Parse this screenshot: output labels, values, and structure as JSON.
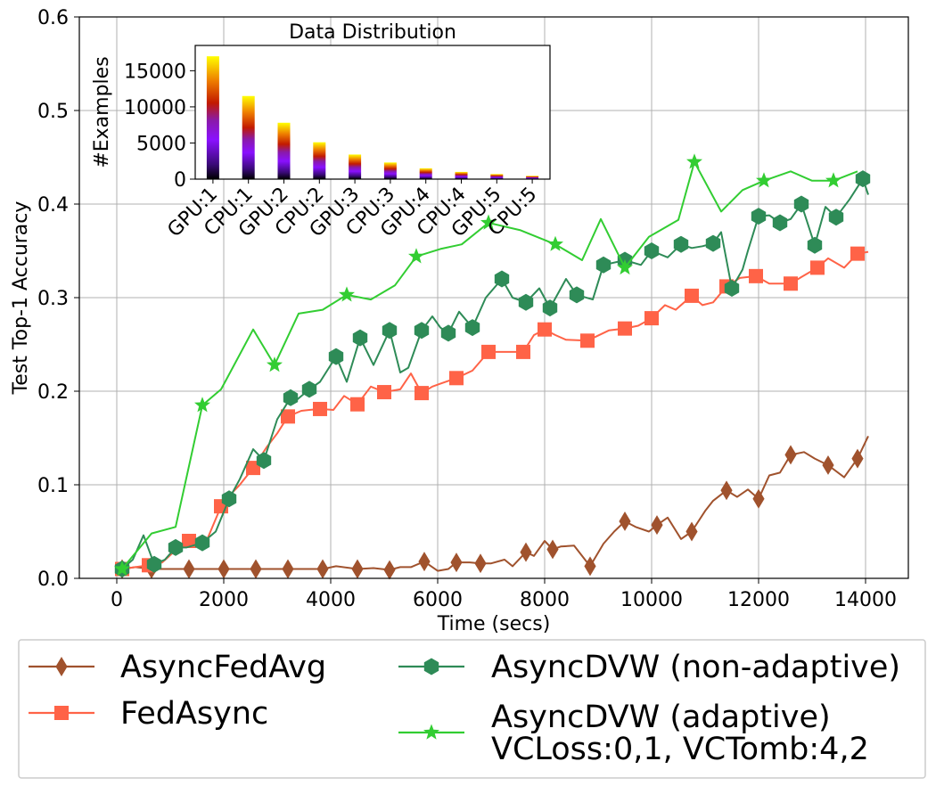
{
  "colors": {
    "asyncfedavg": "#a0522d",
    "fedasync": "#ff6347",
    "asyncdvw_nonadaptive": "#2e8b57",
    "asyncdvw_adaptive": "#32cd32",
    "grid": "#b0b0b0"
  },
  "chart_data": [
    {
      "type": "line",
      "title": "",
      "xlabel": "Time (secs)",
      "ylabel": "Test Top-1 Accuracy",
      "xlim": [
        -700,
        14800
      ],
      "ylim": [
        0.0,
        0.6
      ],
      "xticks": [
        0,
        2000,
        4000,
        6000,
        8000,
        10000,
        12000,
        14000
      ],
      "xtick_labels": [
        "0",
        "2000",
        "4000",
        "6000",
        "8000",
        "10000",
        "12000",
        "14000"
      ],
      "yticks": [
        0.0,
        0.1,
        0.2,
        0.3,
        0.4,
        0.5,
        0.6
      ],
      "ytick_labels": [
        "0.0",
        "0.1",
        "0.2",
        "0.3",
        "0.4",
        "0.5",
        "0.6"
      ],
      "grid": true,
      "series": [
        {
          "key": "asyncfedavg",
          "name": "AsyncFedAvg",
          "marker": "diamond",
          "x": [
            100,
            350,
            650,
            1000,
            1350,
            1700,
            2000,
            2350,
            2600,
            2900,
            3200,
            3600,
            3850,
            4100,
            4500,
            4800,
            5100,
            5300,
            5500,
            5750,
            6000,
            6200,
            6350,
            6600,
            6800,
            7000,
            7250,
            7400,
            7650,
            7800,
            8000,
            8150,
            8300,
            8550,
            8850,
            9100,
            9300,
            9500,
            9700,
            9950,
            10100,
            10300,
            10550,
            10750,
            11000,
            11150,
            11400,
            11600,
            11800,
            12000,
            12200,
            12400,
            12600,
            12850,
            13050,
            13300,
            13600,
            13850,
            14050
          ],
          "y": [
            0.01,
            0.012,
            0.01,
            0.01,
            0.01,
            0.01,
            0.01,
            0.01,
            0.01,
            0.01,
            0.01,
            0.01,
            0.01,
            0.013,
            0.01,
            0.011,
            0.009,
            0.012,
            0.012,
            0.018,
            0.008,
            0.01,
            0.017,
            0.017,
            0.016,
            0.016,
            0.02,
            0.013,
            0.028,
            0.024,
            0.04,
            0.031,
            0.034,
            0.035,
            0.013,
            0.037,
            0.05,
            0.061,
            0.055,
            0.05,
            0.057,
            0.065,
            0.042,
            0.05,
            0.072,
            0.083,
            0.094,
            0.087,
            0.095,
            0.085,
            0.11,
            0.113,
            0.132,
            0.135,
            0.128,
            0.121,
            0.108,
            0.128,
            0.152
          ],
          "marker_indices": [
            0,
            2,
            4,
            6,
            8,
            10,
            12,
            14,
            16,
            19,
            22,
            24,
            28,
            31,
            34,
            37,
            40,
            43,
            46,
            49,
            52,
            55,
            57
          ]
        },
        {
          "key": "fedasync",
          "name": "FedAsync",
          "marker": "square",
          "x": [
            100,
            350,
            600,
            850,
            1100,
            1350,
            1550,
            1700,
            1950,
            2100,
            2300,
            2550,
            2800,
            3000,
            3200,
            3450,
            3600,
            3800,
            4050,
            4250,
            4500,
            4750,
            5000,
            5300,
            5500,
            5700,
            5900,
            6050,
            6350,
            6650,
            6950,
            7200,
            7600,
            7800,
            8000,
            8200,
            8400,
            8800,
            9200,
            9500,
            9750,
            10000,
            10250,
            10450,
            10750,
            10950,
            11150,
            11400,
            11650,
            11950,
            12200,
            12600,
            12800,
            13100,
            13300,
            13600,
            13850,
            14050
          ],
          "y": [
            0.01,
            0.012,
            0.014,
            0.017,
            0.03,
            0.04,
            0.04,
            0.043,
            0.077,
            0.088,
            0.1,
            0.118,
            0.14,
            0.155,
            0.173,
            0.179,
            0.18,
            0.181,
            0.18,
            0.195,
            0.186,
            0.205,
            0.199,
            0.202,
            0.219,
            0.198,
            0.205,
            0.208,
            0.214,
            0.222,
            0.242,
            0.242,
            0.242,
            0.26,
            0.266,
            0.26,
            0.255,
            0.254,
            0.265,
            0.267,
            0.27,
            0.278,
            0.292,
            0.287,
            0.302,
            0.292,
            0.295,
            0.312,
            0.321,
            0.323,
            0.315,
            0.315,
            0.322,
            0.332,
            0.342,
            0.332,
            0.347,
            0.349
          ],
          "marker_indices": [
            0,
            2,
            5,
            8,
            11,
            14,
            17,
            20,
            22,
            25,
            28,
            30,
            32,
            34,
            37,
            39,
            41,
            44,
            47,
            49,
            51,
            53,
            56
          ]
        },
        {
          "key": "asyncdvw_nonadaptive",
          "name": "AsyncDVW (non-adaptive)",
          "marker": "hexagon",
          "x": [
            100,
            300,
            500,
            700,
            900,
            1100,
            1300,
            1600,
            1850,
            2100,
            2300,
            2550,
            2750,
            3000,
            3250,
            3350,
            3600,
            3800,
            4100,
            4300,
            4550,
            4800,
            5100,
            5300,
            5450,
            5700,
            5900,
            6050,
            6200,
            6400,
            6650,
            6900,
            7200,
            7400,
            7650,
            7900,
            8100,
            8400,
            8600,
            8900,
            9100,
            9500,
            9800,
            10000,
            10300,
            10550,
            10750,
            10950,
            11150,
            11300,
            11500,
            11700,
            11800,
            12000,
            12200,
            12400,
            12600,
            12800,
            13050,
            13250,
            13450,
            13700,
            13950,
            14050
          ],
          "y": [
            0.01,
            0.02,
            0.046,
            0.015,
            0.02,
            0.033,
            0.033,
            0.038,
            0.05,
            0.085,
            0.106,
            0.138,
            0.126,
            0.17,
            0.193,
            0.19,
            0.202,
            0.21,
            0.237,
            0.21,
            0.257,
            0.228,
            0.265,
            0.22,
            0.225,
            0.265,
            0.28,
            0.268,
            0.262,
            0.285,
            0.268,
            0.3,
            0.32,
            0.3,
            0.295,
            0.31,
            0.289,
            0.32,
            0.303,
            0.298,
            0.335,
            0.34,
            0.335,
            0.35,
            0.343,
            0.357,
            0.353,
            0.355,
            0.358,
            0.37,
            0.31,
            0.33,
            0.35,
            0.387,
            0.388,
            0.38,
            0.384,
            0.4,
            0.356,
            0.397,
            0.386,
            0.405,
            0.427,
            0.41
          ],
          "marker_indices": [
            0,
            3,
            5,
            7,
            9,
            12,
            14,
            16,
            18,
            20,
            22,
            25,
            28,
            30,
            32,
            34,
            36,
            38,
            40,
            41,
            43,
            45,
            48,
            50,
            53,
            55,
            57,
            58,
            60,
            62
          ]
        },
        {
          "key": "asyncdvw_adaptive",
          "name": "AsyncDVW (adaptive) VCLoss:0,1, VCTomb:4,2",
          "marker": "star",
          "x": [
            100,
            650,
            1100,
            1600,
            1950,
            2550,
            2950,
            3400,
            3850,
            4300,
            4750,
            5200,
            5600,
            6050,
            6450,
            6950,
            7550,
            8200,
            8700,
            9050,
            9500,
            9950,
            10500,
            10800,
            11300,
            11700,
            12100,
            12600,
            13000,
            13400,
            13850
          ],
          "y": [
            0.01,
            0.048,
            0.055,
            0.185,
            0.202,
            0.266,
            0.228,
            0.283,
            0.287,
            0.303,
            0.298,
            0.313,
            0.344,
            0.352,
            0.357,
            0.38,
            0.372,
            0.357,
            0.34,
            0.384,
            0.332,
            0.365,
            0.383,
            0.445,
            0.392,
            0.415,
            0.425,
            0.435,
            0.425,
            0.425,
            0.435
          ],
          "marker_indices": [
            0,
            3,
            6,
            9,
            12,
            15,
            17,
            20,
            23,
            26,
            29
          ]
        }
      ],
      "legend": {
        "placement": "below",
        "entries": [
          {
            "key": "asyncfedavg",
            "label_lines": [
              "AsyncFedAvg"
            ]
          },
          {
            "key": "fedasync",
            "label_lines": [
              "FedAsync"
            ]
          },
          {
            "key": "asyncdvw_nonadaptive",
            "label_lines": [
              "AsyncDVW (non-adaptive)"
            ]
          },
          {
            "key": "asyncdvw_adaptive",
            "label_lines": [
              "AsyncDVW (adaptive)",
              "VCLoss:0,1, VCTomb:4,2"
            ]
          }
        ]
      }
    },
    {
      "type": "bar",
      "title": "Data Distribution",
      "xlabel": "",
      "ylabel": "#Examples",
      "ylim": [
        0,
        18500
      ],
      "yticks": [
        0,
        5000,
        10000,
        15000
      ],
      "ytick_labels": [
        "0",
        "5000",
        "10000",
        "15000"
      ],
      "categories": [
        "GPU:1",
        "CPU:1",
        "GPU:2",
        "CPU:2",
        "GPU:3",
        "CPU:3",
        "GPU:4",
        "CPU:4",
        "GPU:5",
        "CPU:5"
      ],
      "values": [
        17000,
        11500,
        7800,
        5100,
        3400,
        2300,
        1500,
        1000,
        700,
        450
      ],
      "fill": "gradient (black to purple to red to orange to yellow)",
      "grid": false
    }
  ]
}
